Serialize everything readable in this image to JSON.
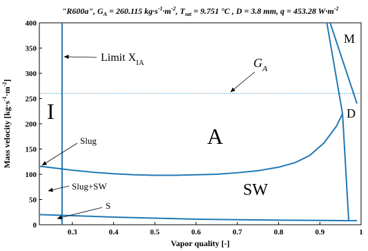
{
  "chart_data": {
    "type": "line",
    "title": {
      "fluid": "\"R600a\"",
      "ga_label": "G",
      "ga_sub": "A",
      "ga_value": " = 260.115 kg·s",
      "ga_exp1": "-1",
      "ga_mid": "·m",
      "ga_exp2": "-2",
      "tsat_label": ", T",
      "tsat_sub": "sat",
      "tsat_value": " = 9.751 °C , D = 3.8 mm, q = 453.28 W·m",
      "q_exp": "-2"
    },
    "xlabel": "Vapor quality [-]",
    "ylabel": {
      "main": "Mass velocity [kg·s",
      "exp1": "-1",
      "mid": "·m",
      "exp2": "-2",
      "end": "]"
    },
    "xlim": [
      0.22,
      1.0
    ],
    "ylim": [
      0,
      400
    ],
    "xticks": [
      0.3,
      0.4,
      0.5,
      0.6,
      0.7,
      0.8,
      0.9,
      1
    ],
    "xtick_labels": [
      "0.3",
      "0.4",
      "0.5",
      "0.6",
      "0.7",
      "0.8",
      "0.9",
      "1"
    ],
    "yticks": [
      0,
      50,
      100,
      150,
      200,
      250,
      300,
      350,
      400
    ],
    "ytick_labels": [
      "0",
      "50",
      "100",
      "150",
      "200",
      "250",
      "300",
      "350",
      "400"
    ],
    "line_color": "#1f77b4",
    "series": [
      {
        "id": "limit-xia",
        "x": [
          0.275,
          0.275
        ],
        "y": [
          0,
          400
        ]
      },
      {
        "id": "ga-line",
        "style": "dotted",
        "x": [
          0.22,
          1.0
        ],
        "y": [
          260.115,
          260.115
        ]
      },
      {
        "id": "slug-sw-boundary",
        "x": [
          0.22,
          0.25,
          0.3,
          0.35,
          0.4,
          0.45,
          0.5,
          0.55,
          0.6,
          0.65,
          0.7,
          0.75,
          0.8,
          0.84,
          0.875,
          0.91,
          0.94,
          0.955
        ],
        "y": [
          116,
          113,
          108,
          104,
          101,
          99,
          98,
          98,
          99,
          100,
          103,
          107,
          114,
          123,
          137,
          162,
          195,
          220
        ]
      },
      {
        "id": "sw-boundary",
        "x": [
          0.22,
          0.3,
          0.4,
          0.5,
          0.6,
          0.7,
          0.8,
          0.9,
          0.97,
          0.99
        ],
        "y": [
          20,
          18,
          15,
          13,
          11,
          10,
          9,
          8.5,
          8,
          8
        ]
      },
      {
        "id": "dryout-boundary",
        "x": [
          0.955,
          0.97
        ],
        "y": [
          220,
          8
        ]
      },
      {
        "id": "mist-left",
        "x": [
          0.917,
          0.955
        ],
        "y": [
          400,
          220
        ]
      },
      {
        "id": "mist-right",
        "x": [
          0.925,
          0.99
        ],
        "y": [
          400,
          240
        ]
      }
    ]
  },
  "annotations": {
    "limit": "Limit X",
    "limit_sub": "IA",
    "ga": "G",
    "ga_sub": "A",
    "slug": "Slug",
    "slugsw": "Slug+SW",
    "s": "S"
  },
  "regions": {
    "I": "I",
    "A": "A",
    "SW": "SW",
    "D": "D",
    "M": "M"
  }
}
